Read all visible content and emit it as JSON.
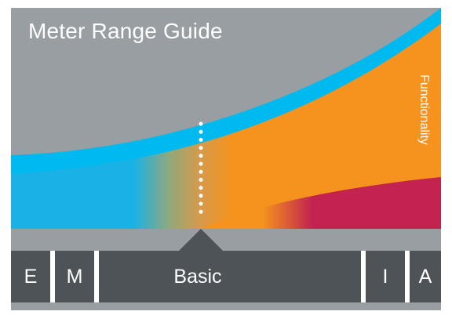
{
  "diagram": {
    "title": "Meter Range Guide",
    "axis_label": "Functionality",
    "segments": [
      {
        "key": "E",
        "label": "E"
      },
      {
        "key": "M",
        "label": "M"
      },
      {
        "key": "basic",
        "label": "Basic",
        "selected": true
      },
      {
        "key": "I",
        "label": "I"
      },
      {
        "key": "A",
        "label": "A"
      }
    ]
  },
  "colors": {
    "background": "#999ea2",
    "dark": "#4e5358",
    "blue": "#00b9ee",
    "mid_blue": "#1ab2e6",
    "orange": "#f5931e",
    "crimson": "#c2244f",
    "text": "#ffffff"
  }
}
